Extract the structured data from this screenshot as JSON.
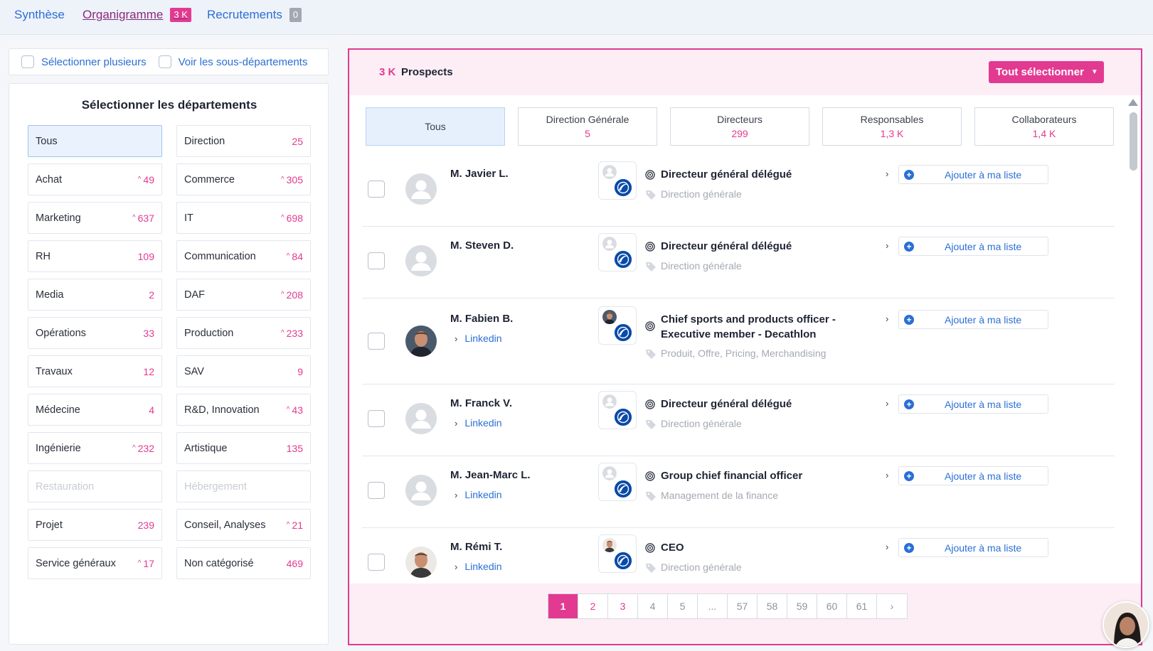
{
  "tabs": [
    {
      "label": "Synthèse",
      "badge": ""
    },
    {
      "label": "Organigramme",
      "badge": "3 K"
    },
    {
      "label": "Recrutements",
      "badge": "0"
    }
  ],
  "options": {
    "multi_select": "Sélectionner plusieurs",
    "sub_depts": "Voir les sous-départements"
  },
  "departments": {
    "title": "Sélectionner les départements",
    "items": [
      {
        "label": "Tous",
        "count": "",
        "trend": false
      },
      {
        "label": "Direction",
        "count": "25",
        "trend": false
      },
      {
        "label": "Achat",
        "count": "49",
        "trend": true
      },
      {
        "label": "Commerce",
        "count": "305",
        "trend": true
      },
      {
        "label": "Marketing",
        "count": "637",
        "trend": true
      },
      {
        "label": "IT",
        "count": "698",
        "trend": true
      },
      {
        "label": "RH",
        "count": "109",
        "trend": false
      },
      {
        "label": "Communication",
        "count": "84",
        "trend": true
      },
      {
        "label": "Media",
        "count": "2",
        "trend": false
      },
      {
        "label": "DAF",
        "count": "208",
        "trend": true
      },
      {
        "label": "Opérations",
        "count": "33",
        "trend": false
      },
      {
        "label": "Production",
        "count": "233",
        "trend": true
      },
      {
        "label": "Travaux",
        "count": "12",
        "trend": false
      },
      {
        "label": "SAV",
        "count": "9",
        "trend": false
      },
      {
        "label": "Médecine",
        "count": "4",
        "trend": false
      },
      {
        "label": "R&D, Innovation",
        "count": "43",
        "trend": true
      },
      {
        "label": "Ingénierie",
        "count": "232",
        "trend": true
      },
      {
        "label": "Artistique",
        "count": "135",
        "trend": false
      },
      {
        "label": "Restauration",
        "count": "",
        "trend": false
      },
      {
        "label": "Hébergement",
        "count": "",
        "trend": false
      },
      {
        "label": "Projet",
        "count": "239",
        "trend": false
      },
      {
        "label": "Conseil, Analyses",
        "count": "21",
        "trend": true
      },
      {
        "label": "Service généraux",
        "count": "17",
        "trend": true
      },
      {
        "label": "Non catégorisé",
        "count": "469",
        "trend": false
      }
    ]
  },
  "prospects": {
    "count": "3 K",
    "title": "Prospects",
    "select_all": "Tout sélectionner",
    "levels": [
      {
        "label": "Tous",
        "count": ""
      },
      {
        "label": "Direction Générale",
        "count": "5"
      },
      {
        "label": "Directeurs",
        "count": "299"
      },
      {
        "label": "Responsables",
        "count": "1,3 K"
      },
      {
        "label": "Collaborateurs",
        "count": "1,4 K"
      }
    ],
    "add_label": "Ajouter à ma liste",
    "linkedin_label": "Linkedin",
    "rows": [
      {
        "name": "M. Javier L.",
        "role": "Directeur général délégué",
        "department": "Direction générale",
        "linkedin": false,
        "photo": false
      },
      {
        "name": "M. Steven D.",
        "role": "Directeur général délégué",
        "department": "Direction générale",
        "linkedin": false,
        "photo": false
      },
      {
        "name": "M. Fabien B.",
        "role": "Chief sports and products officer - Executive member - Decathlon",
        "department": "Produit, Offre, Pricing, Merchandising",
        "linkedin": true,
        "photo": true
      },
      {
        "name": "M. Franck V.",
        "role": "Directeur général délégué",
        "department": "Direction générale",
        "linkedin": true,
        "photo": false
      },
      {
        "name": "M. Jean-Marc L.",
        "role": "Group chief financial officer",
        "department": "Management de la finance",
        "linkedin": true,
        "photo": false
      },
      {
        "name": "M. Rémi T.",
        "role": "CEO",
        "department": "Direction générale",
        "linkedin": true,
        "photo": true
      }
    ]
  },
  "pagination": [
    "1",
    "2",
    "3",
    "4",
    "5",
    "...",
    "57",
    "58",
    "59",
    "60",
    "61"
  ],
  "colors": {
    "accent": "#e23a91",
    "link": "#2a6fd6"
  }
}
